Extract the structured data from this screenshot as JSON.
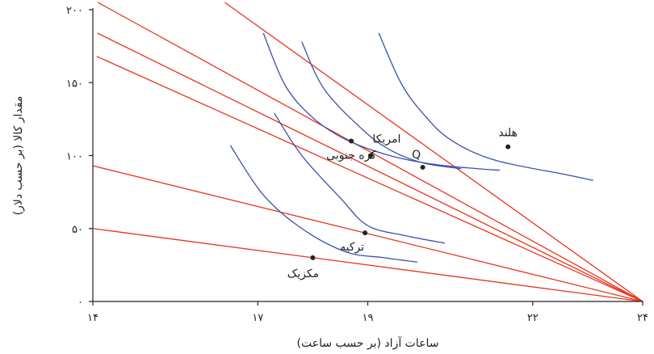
{
  "chart_data": {
    "type": "line",
    "xlabel": "ساعات آزاد (بر حسب ساعت)",
    "ylabel": "مقدار کالا (بر حسب دلار)",
    "xlim": [
      14,
      24
    ],
    "ylim": [
      0,
      200
    ],
    "x_ticks": [
      {
        "value": 14,
        "label": "۱۴"
      },
      {
        "value": 17,
        "label": "۱۷"
      },
      {
        "value": 19,
        "label": "۱۹"
      },
      {
        "value": 22,
        "label": "۲۲"
      },
      {
        "value": 24,
        "label": "۲۴"
      }
    ],
    "y_ticks": [
      {
        "value": 0,
        "label": "۰"
      },
      {
        "value": 50,
        "label": "۵۰"
      },
      {
        "value": 100,
        "label": "۱۰۰"
      },
      {
        "value": 150,
        "label": "۱۵۰"
      },
      {
        "value": 200,
        "label": "۲۰۰"
      }
    ],
    "colors": {
      "budget": "#e8361f",
      "indifference": "#3b4fb0",
      "axis": "#222222",
      "point": "#222222"
    },
    "budget_lines": [
      {
        "from": [
          14.09,
          205
        ],
        "to": [
          24,
          0
        ]
      },
      {
        "from": [
          16.4,
          205
        ],
        "to": [
          24,
          0
        ]
      },
      {
        "from": [
          14.08,
          184
        ],
        "to": [
          24,
          0
        ]
      },
      {
        "from": [
          14.07,
          168
        ],
        "to": [
          24,
          0
        ]
      },
      {
        "from": [
          14,
          93
        ],
        "to": [
          24,
          0
        ]
      },
      {
        "from": [
          14,
          50
        ],
        "to": [
          24,
          0
        ]
      }
    ],
    "indifference_curves": [
      {
        "x": [
          16.5,
          17.1,
          17.8,
          18.6,
          19.3,
          19.9
        ],
        "y": [
          107,
          73,
          50,
          34,
          30,
          27
        ]
      },
      {
        "x": [
          17.3,
          17.8,
          18.5,
          19.0,
          19.7,
          20.4
        ],
        "y": [
          129,
          100,
          71,
          52,
          45,
          40
        ]
      },
      {
        "x": [
          17.1,
          17.5,
          18.0,
          18.6,
          19.4,
          20.2,
          21.0,
          21.4
        ],
        "y": [
          184,
          148,
          126,
          111,
          100,
          94,
          91,
          90
        ]
      },
      {
        "x": [
          17.8,
          18.2,
          18.9,
          19.4,
          20.0,
          20.7
        ],
        "y": [
          178,
          146,
          118,
          104,
          95,
          91
        ]
      },
      {
        "x": [
          19.2,
          19.6,
          20.0,
          20.5,
          21.3,
          22.6,
          23.1
        ],
        "y": [
          184,
          150,
          129,
          111,
          97,
          87,
          83
        ]
      }
    ],
    "points": [
      {
        "label": "هلند",
        "x": 21.55,
        "y": 106
      },
      {
        "label": "امریکا",
        "x": 19.05,
        "y": 100
      },
      {
        "label": "Q",
        "x": 20.0,
        "y": 92
      },
      {
        "label": "کره جنوبی",
        "x": 18.7,
        "y": 110
      },
      {
        "label": "ترکیه",
        "x": 18.95,
        "y": 47
      },
      {
        "label": "مکزیک",
        "x": 18.0,
        "y": 30
      }
    ]
  }
}
